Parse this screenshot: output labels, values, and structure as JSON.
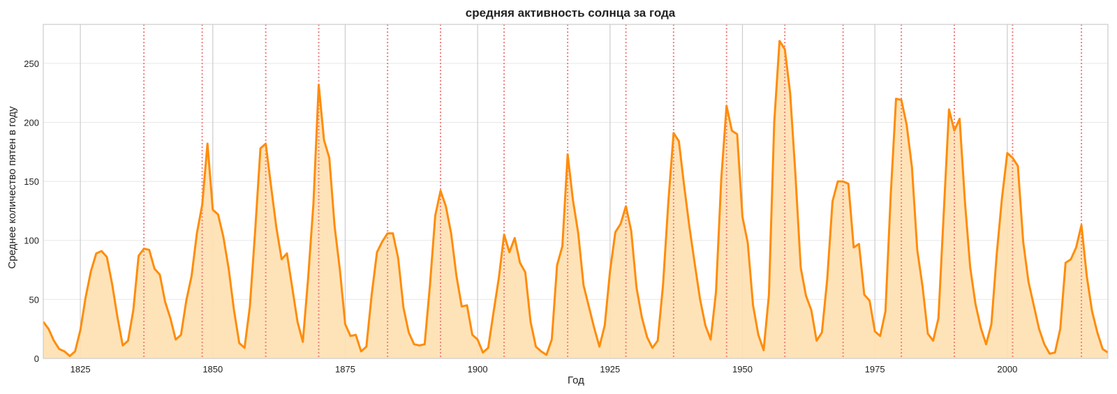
{
  "chart_data": {
    "type": "area",
    "title": "средняя активность солнца за года",
    "xlabel": "Год",
    "ylabel": "Среднее количество пятен в году",
    "xlim": [
      1818,
      2019
    ],
    "ylim": [
      0,
      283
    ],
    "xticks": [
      1825,
      1850,
      1875,
      1900,
      1925,
      1950,
      1975,
      2000
    ],
    "yticks": [
      0,
      50,
      100,
      150,
      200,
      250
    ],
    "grid": true,
    "colors": {
      "line": "#ff8c0a",
      "fill": "#ffe0b0",
      "cycle_marker": "#f08080",
      "grid": "#e8e8e8",
      "decade_line": "#cccccc",
      "frame": "#cccccc"
    },
    "cycle_markers": [
      1837,
      1848,
      1860,
      1870,
      1883,
      1893,
      1905,
      1917,
      1928,
      1937,
      1947,
      1958,
      1969,
      1980,
      1990,
      2001,
      2014
    ],
    "x": [
      1818,
      1819,
      1820,
      1821,
      1822,
      1823,
      1824,
      1825,
      1826,
      1827,
      1828,
      1829,
      1830,
      1831,
      1832,
      1833,
      1834,
      1835,
      1836,
      1837,
      1838,
      1839,
      1840,
      1841,
      1842,
      1843,
      1844,
      1845,
      1846,
      1847,
      1848,
      1849,
      1850,
      1851,
      1852,
      1853,
      1854,
      1855,
      1856,
      1857,
      1858,
      1859,
      1860,
      1861,
      1862,
      1863,
      1864,
      1865,
      1866,
      1867,
      1868,
      1869,
      1870,
      1871,
      1872,
      1873,
      1874,
      1875,
      1876,
      1877,
      1878,
      1879,
      1880,
      1881,
      1882,
      1883,
      1884,
      1885,
      1886,
      1887,
      1888,
      1889,
      1890,
      1891,
      1892,
      1893,
      1894,
      1895,
      1896,
      1897,
      1898,
      1899,
      1900,
      1901,
      1902,
      1903,
      1904,
      1905,
      1906,
      1907,
      1908,
      1909,
      1910,
      1911,
      1912,
      1913,
      1914,
      1915,
      1916,
      1917,
      1918,
      1919,
      1920,
      1921,
      1922,
      1923,
      1924,
      1925,
      1926,
      1927,
      1928,
      1929,
      1930,
      1931,
      1932,
      1933,
      1934,
      1935,
      1936,
      1937,
      1938,
      1939,
      1940,
      1941,
      1942,
      1943,
      1944,
      1945,
      1946,
      1947,
      1948,
      1949,
      1950,
      1951,
      1952,
      1953,
      1954,
      1955,
      1956,
      1957,
      1958,
      1959,
      1960,
      1961,
      1962,
      1963,
      1964,
      1965,
      1966,
      1967,
      1968,
      1969,
      1970,
      1971,
      1972,
      1973,
      1974,
      1975,
      1976,
      1977,
      1978,
      1979,
      1980,
      1981,
      1982,
      1983,
      1984,
      1985,
      1986,
      1987,
      1988,
      1989,
      1990,
      1991,
      1992,
      1993,
      1994,
      1995,
      1996,
      1997,
      1998,
      1999,
      2000,
      2001,
      2002,
      2003,
      2004,
      2005,
      2006,
      2007,
      2008,
      2009,
      2010,
      2011,
      2012,
      2013,
      2014,
      2015,
      2016,
      2017,
      2018,
      2019
    ],
    "values": [
      31,
      25,
      15,
      8,
      6,
      2,
      6,
      24,
      52,
      74,
      89,
      91,
      86,
      63,
      35,
      11,
      15,
      41,
      87,
      93,
      92,
      76,
      71,
      48,
      34,
      16,
      20,
      49,
      70,
      106,
      130,
      182,
      126,
      122,
      103,
      76,
      41,
      13,
      9,
      44,
      108,
      178,
      182,
      146,
      111,
      84,
      89,
      60,
      31,
      14,
      68,
      131,
      232,
      185,
      170,
      112,
      75,
      29,
      19,
      20,
      6,
      10,
      54,
      90,
      99,
      106,
      106,
      85,
      43,
      22,
      12,
      11,
      12,
      62,
      121,
      142,
      129,
      106,
      70,
      44,
      45,
      20,
      16,
      5,
      9,
      39,
      68,
      105,
      90,
      102,
      81,
      73,
      31,
      10,
      6,
      3,
      16,
      79,
      95,
      173,
      134,
      106,
      62,
      44,
      26,
      10,
      28,
      74,
      107,
      114,
      129,
      108,
      60,
      35,
      18,
      9,
      15,
      62,
      132,
      191,
      184,
      146,
      111,
      80,
      50,
      28,
      16,
      56,
      152,
      214,
      193,
      190,
      120,
      98,
      45,
      20,
      7,
      54,
      200,
      269,
      262,
      225,
      156,
      77,
      53,
      41,
      15,
      22,
      67,
      133,
      150,
      150,
      148,
      94,
      97,
      54,
      49,
      23,
      19,
      40,
      139,
      220,
      219,
      198,
      162,
      92,
      61,
      21,
      15,
      34,
      123,
      211,
      193,
      203,
      133,
      77,
      46,
      26,
      12,
      29,
      88,
      136,
      174,
      170,
      163,
      99,
      65,
      45,
      25,
      12,
      4,
      5,
      25,
      81,
      84,
      94,
      113,
      70,
      40,
      22,
      8,
      5
    ]
  }
}
